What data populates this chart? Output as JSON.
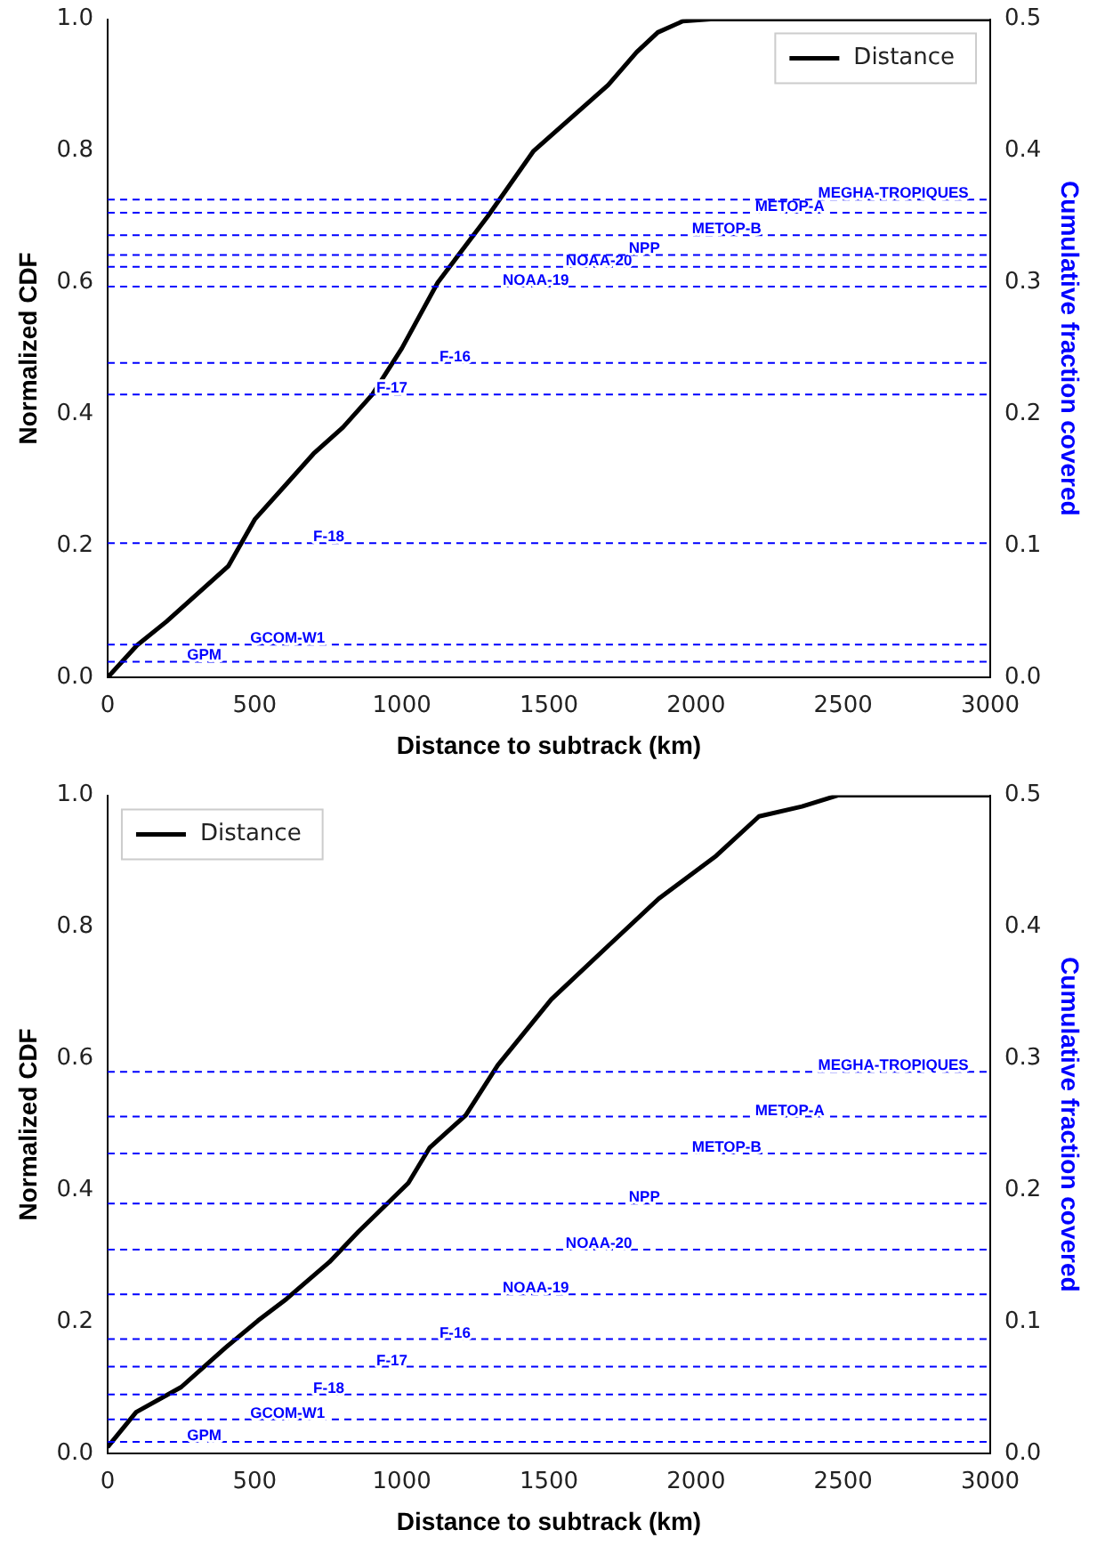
{
  "chart_data": [
    {
      "type": "line",
      "xlabel": "Distance to subtrack (km)",
      "ylabel": "Normalized CDF",
      "y2label": "Cumulative fraction covered",
      "legend": "top right",
      "line_style": "solid",
      "marker": "none",
      "grid": false,
      "xlim": [
        0,
        3000
      ],
      "xticks": [
        0,
        500,
        1000,
        1500,
        2000,
        2500,
        3000
      ],
      "ylim": [
        0,
        1
      ],
      "yticks": [
        {
          "value": 0,
          "label": "0.0"
        },
        {
          "value": 0.2,
          "label": "0.2"
        },
        {
          "value": 0.4,
          "label": "0.4"
        },
        {
          "value": 0.6,
          "label": "0.6"
        },
        {
          "value": 0.8,
          "label": "0.8"
        },
        {
          "value": 1,
          "label": "1.0"
        }
      ],
      "y2lim": [
        0,
        0.5
      ],
      "y2ticks": [
        {
          "value": 0,
          "label": "0.0"
        },
        {
          "value": 0.1,
          "label": "0.1"
        },
        {
          "value": 0.2,
          "label": "0.2"
        },
        {
          "value": 0.3,
          "label": "0.3"
        },
        {
          "value": 0.4,
          "label": "0.4"
        },
        {
          "value": 0.5,
          "label": "0.5"
        }
      ],
      "series": [
        {
          "name": "Distance",
          "color": "#000000",
          "x": [
            0,
            100,
            200,
            410,
            500,
            600,
            700,
            800,
            900,
            1000,
            1122,
            1291,
            1448,
            1701,
            1798,
            1870,
            1955,
            2050,
            3000
          ],
          "values": [
            0,
            0.049,
            0.085,
            0.169,
            0.24,
            0.29,
            0.34,
            0.38,
            0.43,
            0.5,
            0.6,
            0.7,
            0.8,
            0.9,
            0.95,
            0.98,
            0.997,
            1,
            1
          ]
        }
      ],
      "ref_lines": [
        {
          "axis": "y2",
          "value": 0.012,
          "label": "GPM",
          "color": "#0000ff",
          "line_style": "dashed"
        },
        {
          "axis": "y2",
          "value": 0.025,
          "label": "GCOM-W1",
          "color": "#0000ff",
          "line_style": "dashed"
        },
        {
          "axis": "y2",
          "value": 0.102,
          "label": "F-18",
          "color": "#0000ff",
          "line_style": "dashed"
        },
        {
          "axis": "y2",
          "value": 0.215,
          "label": "F-17",
          "color": "#0000ff",
          "line_style": "dashed"
        },
        {
          "axis": "y2",
          "value": 0.239,
          "label": "F-16",
          "color": "#0000ff",
          "line_style": "dashed"
        },
        {
          "axis": "y2",
          "value": 0.297,
          "label": "NOAA-19",
          "color": "#0000ff",
          "line_style": "dashed"
        },
        {
          "axis": "y2",
          "value": 0.312,
          "label": "NOAA-20",
          "color": "#0000ff",
          "line_style": "dashed"
        },
        {
          "axis": "y2",
          "value": 0.321,
          "label": "NPP",
          "color": "#0000ff",
          "line_style": "dashed"
        },
        {
          "axis": "y2",
          "value": 0.336,
          "label": "METOP-B",
          "color": "#0000ff",
          "line_style": "dashed"
        },
        {
          "axis": "y2",
          "value": 0.353,
          "label": "METOP-A",
          "color": "#0000ff",
          "line_style": "dashed"
        },
        {
          "axis": "y2",
          "value": 0.363,
          "label": "MEGHA-TROPIQUES",
          "color": "#0000ff",
          "line_style": "dashed"
        }
      ]
    },
    {
      "type": "line",
      "xlabel": "Distance to subtrack (km)",
      "ylabel": "Normalized CDF",
      "y2label": "Cumulative fraction covered",
      "legend": "top left",
      "line_style": "solid",
      "marker": "none",
      "grid": false,
      "xlim": [
        0,
        3000
      ],
      "xticks": [
        0,
        500,
        1000,
        1500,
        2000,
        2500,
        3000
      ],
      "ylim": [
        0,
        1
      ],
      "yticks": [
        {
          "value": 0,
          "label": "0.0"
        },
        {
          "value": 0.2,
          "label": "0.2"
        },
        {
          "value": 0.4,
          "label": "0.4"
        },
        {
          "value": 0.6,
          "label": "0.6"
        },
        {
          "value": 0.8,
          "label": "0.8"
        },
        {
          "value": 1,
          "label": "1.0"
        }
      ],
      "y2lim": [
        0,
        0.5
      ],
      "y2ticks": [
        {
          "value": 0,
          "label": "0.0"
        },
        {
          "value": 0.1,
          "label": "0.1"
        },
        {
          "value": 0.2,
          "label": "0.2"
        },
        {
          "value": 0.3,
          "label": "0.3"
        },
        {
          "value": 0.4,
          "label": "0.4"
        },
        {
          "value": 0.5,
          "label": "0.5"
        }
      ],
      "series": [
        {
          "name": "Distance",
          "color": "#000000",
          "x": [
            0,
            97,
            250,
            401,
            511,
            608,
            754,
            852,
            1022,
            1095,
            1217,
            1326,
            1508,
            1703,
            1873,
            2068,
            2214,
            2360,
            2482,
            3000
          ],
          "values": [
            0.01,
            0.063,
            0.101,
            0.161,
            0.202,
            0.235,
            0.291,
            0.337,
            0.411,
            0.465,
            0.514,
            0.59,
            0.69,
            0.772,
            0.843,
            0.908,
            0.968,
            0.983,
            1,
            1
          ]
        }
      ],
      "ref_lines": [
        {
          "axis": "y2",
          "value": 0.009,
          "label": "GPM",
          "color": "#0000ff",
          "line_style": "dashed"
        },
        {
          "axis": "y2",
          "value": 0.026,
          "label": "GCOM-W1",
          "color": "#0000ff",
          "line_style": "dashed"
        },
        {
          "axis": "y2",
          "value": 0.045,
          "label": "F-18",
          "color": "#0000ff",
          "line_style": "dashed"
        },
        {
          "axis": "y2",
          "value": 0.066,
          "label": "F-17",
          "color": "#0000ff",
          "line_style": "dashed"
        },
        {
          "axis": "y2",
          "value": 0.087,
          "label": "F-16",
          "color": "#0000ff",
          "line_style": "dashed"
        },
        {
          "axis": "y2",
          "value": 0.121,
          "label": "NOAA-19",
          "color": "#0000ff",
          "line_style": "dashed"
        },
        {
          "axis": "y2",
          "value": 0.155,
          "label": "NOAA-20",
          "color": "#0000ff",
          "line_style": "dashed"
        },
        {
          "axis": "y2",
          "value": 0.19,
          "label": "NPP",
          "color": "#0000ff",
          "line_style": "dashed"
        },
        {
          "axis": "y2",
          "value": 0.228,
          "label": "METOP-B",
          "color": "#0000ff",
          "line_style": "dashed"
        },
        {
          "axis": "y2",
          "value": 0.256,
          "label": "METOP-A",
          "color": "#0000ff",
          "line_style": "dashed"
        },
        {
          "axis": "y2",
          "value": 0.29,
          "label": "MEGHA-TROPIQUES",
          "color": "#0000ff",
          "line_style": "dashed"
        }
      ]
    }
  ]
}
